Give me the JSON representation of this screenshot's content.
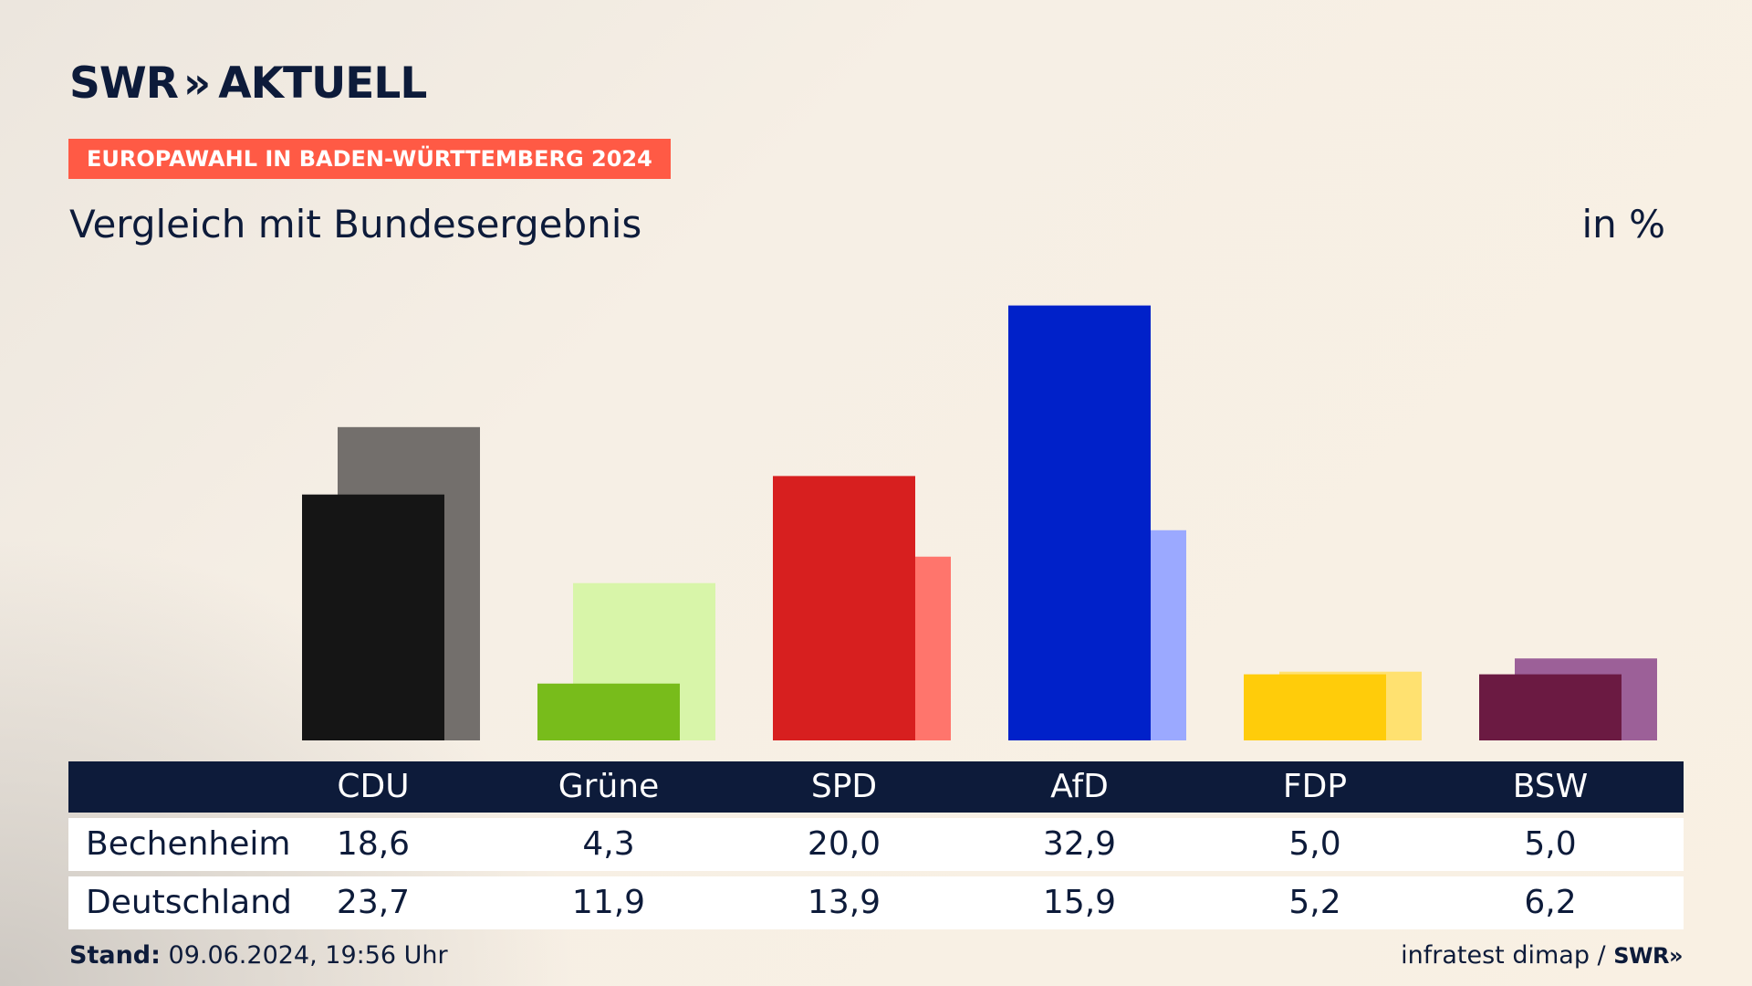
{
  "header": {
    "logo_text": "SWR",
    "logo_chevrons": "»",
    "logo_suffix": "AKTUELL",
    "banner": "EUROPAWAHL IN BADEN-WÜRTTEMBERG 2024",
    "subtitle": "Vergleich mit Bundesergebnis",
    "unit": "in %"
  },
  "table": {
    "rows": [
      {
        "label": "Bechenheim"
      },
      {
        "label": "Deutschland"
      }
    ]
  },
  "footer": {
    "stand_label": "Stand:",
    "stand_value": "09.06.2024, 19:56 Uhr",
    "source": "infratest dimap /",
    "source_logo": "SWR»"
  },
  "chart_data": {
    "type": "bar",
    "categories": [
      "CDU",
      "Grüne",
      "SPD",
      "AfD",
      "FDP",
      "BSW"
    ],
    "series": [
      {
        "name": "Bechenheim",
        "values": [
          18.6,
          4.3,
          20.0,
          32.9,
          5.0,
          5.0
        ],
        "labels": [
          "18,6",
          "4,3",
          "20,0",
          "32,9",
          "5,0",
          "5,0"
        ]
      },
      {
        "name": "Deutschland",
        "values": [
          23.7,
          11.9,
          13.9,
          15.9,
          5.2,
          6.2
        ],
        "labels": [
          "23,7",
          "11,9",
          "13,9",
          "15,9",
          "5,2",
          "6,2"
        ]
      }
    ],
    "colors_primary": [
      "#151515",
      "#78bc1b",
      "#d71f1f",
      "#0021c9",
      "#ffcc0a",
      "#6b1a42"
    ],
    "colors_secondary": [
      "#736f6c",
      "#d8f5a9",
      "#ff756c",
      "#9ba9ff",
      "#ffe170",
      "#9c6098"
    ],
    "ylim": [
      0,
      33
    ],
    "grid": false,
    "legend": "none"
  }
}
